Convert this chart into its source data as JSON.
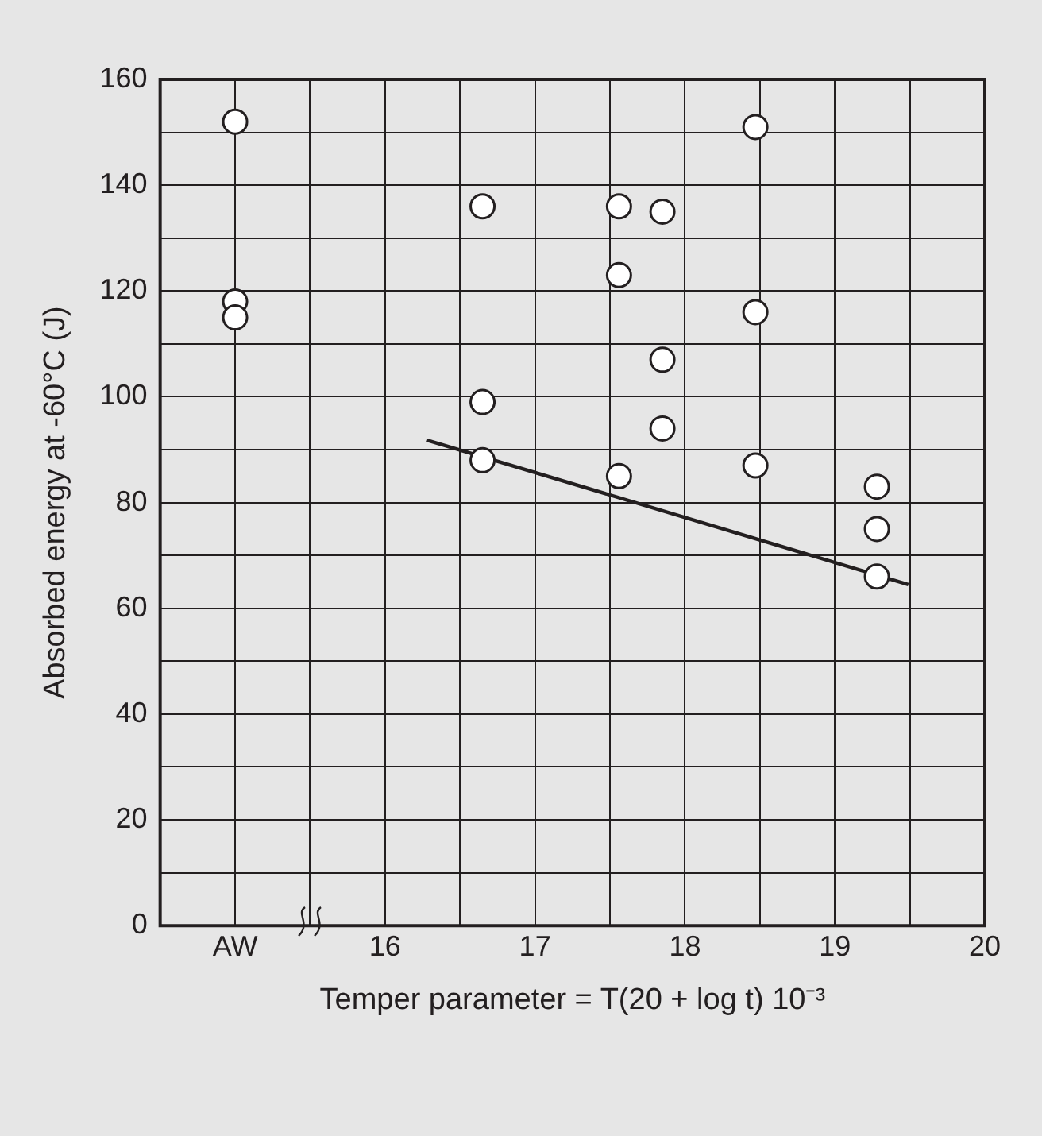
{
  "chart_data": {
    "type": "scatter",
    "xlabel": "Temper parameter = T(20 + log t) 10⁻³",
    "ylabel": "Absorbed energy at -60°C (J)",
    "xlim": [
      14.5,
      20
    ],
    "xticks": [
      {
        "value": 15,
        "label": "AW"
      },
      {
        "value": 15.5,
        "label": null
      },
      16,
      {
        "value": 16.5,
        "label": null
      },
      17,
      {
        "value": 17.5,
        "label": null
      },
      18,
      {
        "value": 18.5,
        "label": null
      },
      19,
      {
        "value": 19.5,
        "label": null
      },
      20
    ],
    "ylim": [
      0,
      160
    ],
    "yticks": [
      0,
      {
        "value": 10,
        "label": null
      },
      20,
      {
        "value": 30,
        "label": null
      },
      40,
      {
        "value": 50,
        "label": null
      },
      60,
      {
        "value": 70,
        "label": null
      },
      80,
      {
        "value": 90,
        "label": null
      },
      100,
      {
        "value": 110,
        "label": null
      },
      120,
      {
        "value": 130,
        "label": null
      },
      140,
      {
        "value": 150,
        "label": null
      },
      160
    ],
    "grid": true,
    "series": [
      {
        "marker": "circle",
        "color": "#ffffff",
        "x": [
          15,
          15,
          15,
          16.65,
          16.65,
          16.65,
          17.56,
          17.56,
          17.56,
          17.85,
          17.85,
          17.85,
          18.47,
          18.47,
          18.47,
          19.28,
          19.28,
          19.28
        ],
        "values": [
          152,
          118,
          115,
          136,
          99,
          88,
          136,
          123,
          85,
          135,
          107,
          94,
          151,
          116,
          87,
          83,
          75,
          66
        ]
      },
      {
        "type": "line",
        "marker": "none",
        "color": "#231f20",
        "x": [
          16.28,
          19.49
        ],
        "values": [
          91.8,
          64.5
        ]
      }
    ]
  }
}
